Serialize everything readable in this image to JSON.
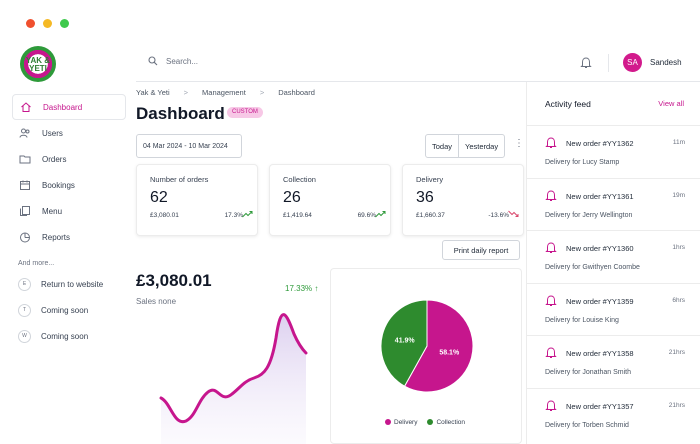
{
  "window": {
    "traffic_colors": [
      "#f0502e",
      "#f5b925",
      "#3ec94c"
    ]
  },
  "brand": {
    "logo_text": "YAK & YETI",
    "accent": "#c6168d"
  },
  "sidebar": {
    "items": [
      {
        "label": "Dashboard",
        "icon": "home-icon",
        "active": true
      },
      {
        "label": "Users",
        "icon": "users-icon"
      },
      {
        "label": "Orders",
        "icon": "folder-icon"
      },
      {
        "label": "Bookings",
        "icon": "calendar-icon"
      },
      {
        "label": "Menu",
        "icon": "copy-icon"
      },
      {
        "label": "Reports",
        "icon": "pie-icon"
      }
    ],
    "section_label": "And more...",
    "extra_items": [
      {
        "letter": "E",
        "label": "Return to website"
      },
      {
        "letter": "T",
        "label": "Coming soon"
      },
      {
        "letter": "W",
        "label": "Coming soon"
      }
    ]
  },
  "topbar": {
    "search_placeholder": "Search...",
    "avatar_initials": "SA",
    "username": "Sandesh"
  },
  "breadcrumb": [
    "Yak & Yeti",
    "Management",
    "Dashboard"
  ],
  "page": {
    "title": "Dashboard",
    "badge": "CUSTOM"
  },
  "filters": {
    "date_range": "04 Mar 2024 - 10 Mar 2024",
    "today_label": "Today",
    "yesterday_label": "Yesterday"
  },
  "cards": [
    {
      "label": "Number of orders",
      "value": "62",
      "amount": "£3,080.01",
      "change": "17.3%",
      "trend": "up"
    },
    {
      "label": "Collection",
      "value": "26",
      "amount": "£1,419.64",
      "change": "69.6%",
      "trend": "up"
    },
    {
      "label": "Delivery",
      "value": "36",
      "amount": "£1,660.37",
      "change": "-13.6%",
      "trend": "down"
    }
  ],
  "print_label": "Print daily report",
  "sales": {
    "value": "£3,080.01",
    "label": "Sales none",
    "change": "17.33% ↑"
  },
  "chart_data": {
    "type": "pie",
    "slices": [
      {
        "name": "Delivery",
        "percent": 58.1,
        "label": "58.1%",
        "color": "#c6168d"
      },
      {
        "name": "Collection",
        "percent": 41.9,
        "label": "41.9%",
        "color": "#2e8b2e"
      }
    ],
    "legend": [
      "Delivery",
      "Collection"
    ],
    "legend_position": "bottom"
  },
  "activity": {
    "title": "Activity feed",
    "view_all": "View all",
    "items": [
      {
        "title": "New order #YY1362",
        "time": "11m",
        "desc": "Delivery for Lucy Stamp"
      },
      {
        "title": "New order #YY1361",
        "time": "19m",
        "desc": "Delivery for Jerry Wellington"
      },
      {
        "title": "New order #YY1360",
        "time": "1hrs",
        "desc": "Delivery for Gwithyen Coombe"
      },
      {
        "title": "New order #YY1359",
        "time": "6hrs",
        "desc": "Delivery for Louise King"
      },
      {
        "title": "New order #YY1358",
        "time": "21hrs",
        "desc": "Delivery for Jonathan Smith"
      },
      {
        "title": "New order #YY1357",
        "time": "21hrs",
        "desc": "Delivery for Torben Schmid"
      }
    ]
  }
}
